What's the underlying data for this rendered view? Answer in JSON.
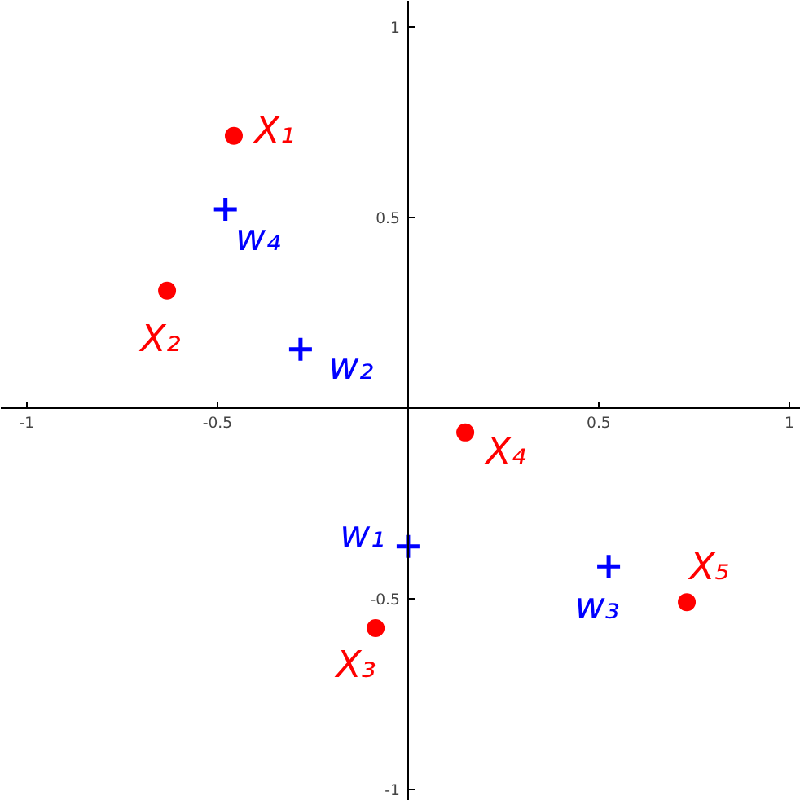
{
  "chart_data": {
    "type": "scatter",
    "xlim": [
      -1.068,
      1.03
    ],
    "ylim": [
      -1.03,
      1.068
    ],
    "xticks": [
      -1,
      -0.5,
      0.5,
      1
    ],
    "yticks": [
      -1,
      -0.5,
      0.5,
      1
    ],
    "grid": false,
    "series": [
      {
        "color": "#ff0000",
        "marker": "circle",
        "x": [
          -0.457,
          -0.632,
          -0.085,
          0.15,
          0.731
        ],
        "values": [
          0.714,
          0.308,
          -0.577,
          -0.064,
          -0.509
        ]
      },
      {
        "color": "#0000ff",
        "marker": "cross",
        "x": [
          -0.479,
          -0.282,
          0.0,
          0.526
        ],
        "values": [
          0.521,
          0.154,
          -0.363,
          -0.415
        ]
      }
    ],
    "annotations": [
      {
        "text": "X₁",
        "x": -0.457,
        "y": 0.714
      },
      {
        "text": "X₂",
        "x": -0.632,
        "y": 0.308
      },
      {
        "text": "X₃",
        "x": -0.085,
        "y": -0.577
      },
      {
        "text": "X₄",
        "x": 0.15,
        "y": -0.064
      },
      {
        "text": "X₅",
        "x": 0.731,
        "y": -0.509
      },
      {
        "text": "w₄",
        "x": -0.479,
        "y": 0.521
      },
      {
        "text": "w₂",
        "x": -0.282,
        "y": 0.154
      },
      {
        "text": "w₁",
        "x": 0.0,
        "y": -0.363
      },
      {
        "text": "w₃",
        "x": 0.526,
        "y": -0.415
      }
    ]
  }
}
